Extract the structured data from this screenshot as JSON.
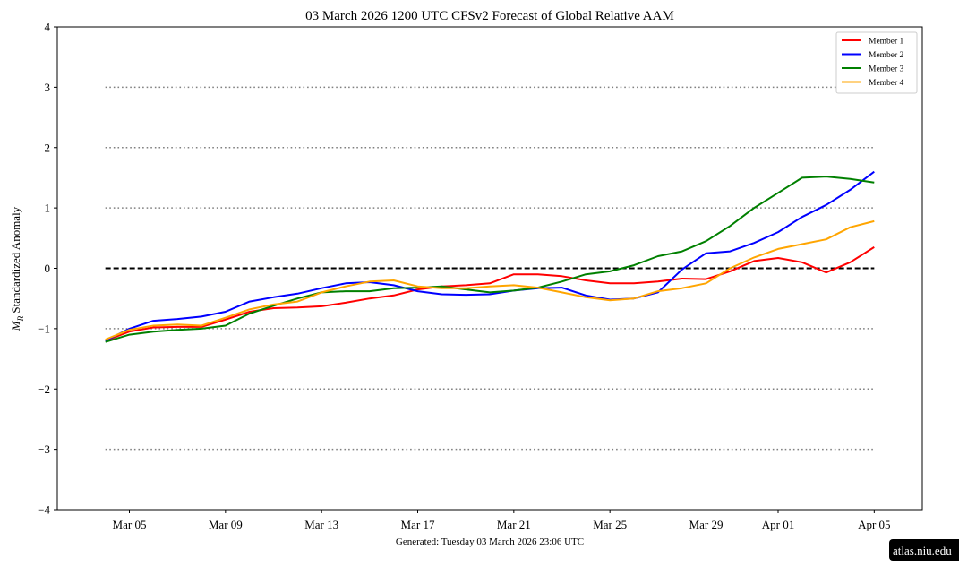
{
  "chart_data": {
    "type": "line",
    "title": "03  March  2026 1200 UTC   CFSv2 Forecast of Global Relative AAM",
    "ylabel": [
      "M",
      "R",
      " Standardized Anomaly"
    ],
    "footer": "Generated: Tuesday  03  March  2026  23:06 UTC",
    "badge": "atlas.niu.edu",
    "x": [
      "Mar 04",
      "Mar 05",
      "Mar 06",
      "Mar 07",
      "Mar 08",
      "Mar 09",
      "Mar 10",
      "Mar 11",
      "Mar 12",
      "Mar 13",
      "Mar 14",
      "Mar 15",
      "Mar 16",
      "Mar 17",
      "Mar 18",
      "Mar 19",
      "Mar 20",
      "Mar 21",
      "Mar 22",
      "Mar 23",
      "Mar 24",
      "Mar 25",
      "Mar 26",
      "Mar 27",
      "Mar 28",
      "Mar 29",
      "Mar 30",
      "Mar 31",
      "Apr 01",
      "Apr 02",
      "Apr 03",
      "Apr 04",
      "Apr 05"
    ],
    "xlim": [
      "Mar 02",
      "Apr 07"
    ],
    "xticks": [
      "Mar 05",
      "Mar 09",
      "Mar 13",
      "Mar 17",
      "Mar 21",
      "Mar 25",
      "Mar 29",
      "Apr 01",
      "Apr 05"
    ],
    "ylim": [
      -4,
      4
    ],
    "yticks": [
      {
        "value": -4,
        "label": "−4"
      },
      {
        "value": -3,
        "label": "−3"
      },
      {
        "value": -2,
        "label": "−2"
      },
      {
        "value": -1,
        "label": "−1"
      },
      0,
      1,
      2,
      3,
      4
    ],
    "reference_lines": {
      "dotted": [
        -3,
        -2,
        -1,
        1,
        2,
        3
      ],
      "dashed": [
        0
      ]
    },
    "legend": "upper right",
    "series": [
      {
        "name": "Member 1",
        "color": "#ff0000",
        "values": [
          -1.2,
          -1.05,
          -0.98,
          -0.97,
          -0.97,
          -0.85,
          -0.72,
          -0.66,
          -0.65,
          -0.63,
          -0.57,
          -0.5,
          -0.45,
          -0.35,
          -0.3,
          -0.28,
          -0.25,
          -0.1,
          -0.1,
          -0.13,
          -0.2,
          -0.25,
          -0.25,
          -0.22,
          -0.17,
          -0.18,
          -0.05,
          0.12,
          0.17,
          0.1,
          -0.07,
          0.1,
          0.35
        ]
      },
      {
        "name": "Member 2",
        "color": "#0000ff",
        "values": [
          -1.2,
          -1.0,
          -0.87,
          -0.84,
          -0.8,
          -0.72,
          -0.55,
          -0.48,
          -0.42,
          -0.33,
          -0.25,
          -0.23,
          -0.28,
          -0.38,
          -0.43,
          -0.44,
          -0.43,
          -0.37,
          -0.33,
          -0.32,
          -0.45,
          -0.52,
          -0.5,
          -0.4,
          -0.02,
          0.25,
          0.28,
          0.42,
          0.6,
          0.85,
          1.05,
          1.3,
          1.6
        ]
      },
      {
        "name": "Member 3",
        "color": "#008000",
        "values": [
          -1.22,
          -1.1,
          -1.05,
          -1.02,
          -1.0,
          -0.95,
          -0.75,
          -0.62,
          -0.5,
          -0.4,
          -0.38,
          -0.38,
          -0.33,
          -0.32,
          -0.3,
          -0.35,
          -0.4,
          -0.37,
          -0.32,
          -0.22,
          -0.1,
          -0.05,
          0.05,
          0.2,
          0.28,
          0.45,
          0.7,
          1.0,
          1.25,
          1.5,
          1.52,
          1.48,
          1.42
        ]
      },
      {
        "name": "Member 4",
        "color": "#ffa500",
        "values": [
          -1.18,
          -1.02,
          -0.95,
          -0.93,
          -0.95,
          -0.82,
          -0.68,
          -0.6,
          -0.55,
          -0.4,
          -0.3,
          -0.22,
          -0.2,
          -0.3,
          -0.33,
          -0.33,
          -0.3,
          -0.28,
          -0.32,
          -0.4,
          -0.48,
          -0.53,
          -0.5,
          -0.38,
          -0.33,
          -0.25,
          0.0,
          0.18,
          0.32,
          0.4,
          0.48,
          0.68,
          0.78
        ]
      }
    ]
  }
}
